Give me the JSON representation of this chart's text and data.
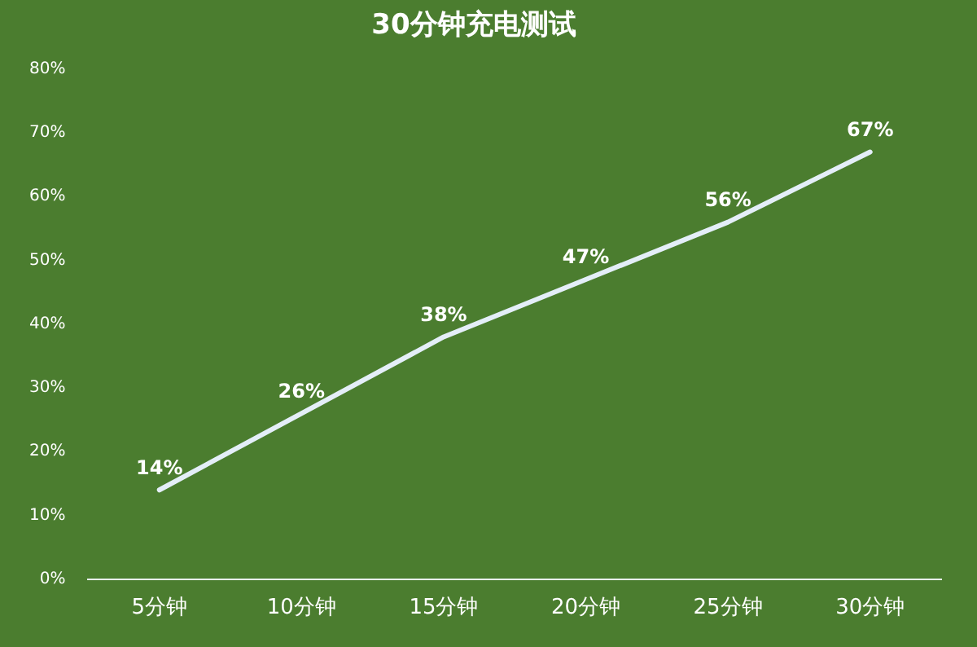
{
  "chart_data": {
    "type": "line",
    "title": "30分钟充电测试",
    "categories": [
      "5分钟",
      "10分钟",
      "15分钟",
      "20分钟",
      "25分钟",
      "30分钟"
    ],
    "series": [
      {
        "color": "#e4eef8",
        "values": [
          14,
          26,
          38,
          47,
          56,
          67
        ]
      }
    ],
    "ylim": [
      0,
      80
    ],
    "yticks": [
      {
        "value": 0,
        "label": "0%"
      },
      {
        "value": 10,
        "label": "10%"
      },
      {
        "value": 20,
        "label": "20%"
      },
      {
        "value": 30,
        "label": "30%"
      },
      {
        "value": 40,
        "label": "40%"
      },
      {
        "value": 50,
        "label": "50%"
      },
      {
        "value": 60,
        "label": "60%"
      },
      {
        "value": 70,
        "label": "70%"
      },
      {
        "value": 80,
        "label": "80%"
      }
    ],
    "value_labels": [
      "14%",
      "26%",
      "38%",
      "47%",
      "56%",
      "67%"
    ],
    "grid": false,
    "legend": false,
    "marker": "none",
    "line_style": "solid"
  }
}
